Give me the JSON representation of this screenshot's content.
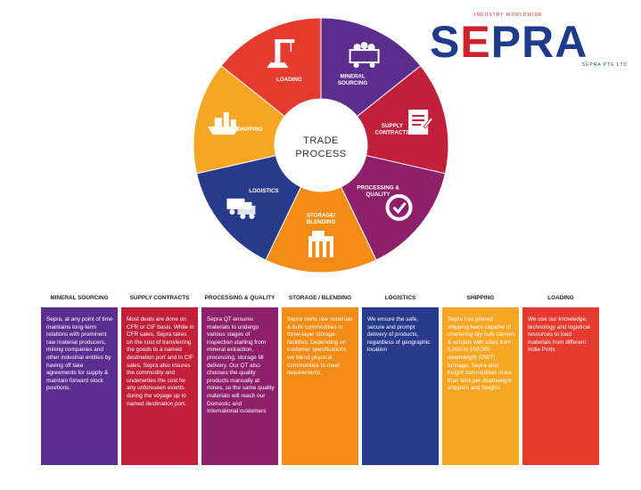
{
  "logo": {
    "tagline": "INDUSTRY WORLDWIDE",
    "word": "SEPRA",
    "sub": "SEPRA PTE LTD",
    "colors": {
      "blue": "#1f3c8a",
      "red": "#d0212a"
    }
  },
  "wheel": {
    "center_line1": "TRADE",
    "center_line2": "PROCESS",
    "segments": [
      {
        "name": "mineral-sourcing",
        "lines": [
          "MINERAL",
          "SOURCING"
        ],
        "icon": "mining-cart-icon",
        "color": "#5b2d8e"
      },
      {
        "name": "supply-contracts",
        "lines": [
          "SUPPLY",
          "CONTRACTS"
        ],
        "icon": "contract-document-icon",
        "color": "#c21f3a"
      },
      {
        "name": "processing-quality",
        "lines": [
          "PROCESSING &",
          "QUALITY"
        ],
        "icon": "quality-check-icon",
        "color": "#8e1f6b"
      },
      {
        "name": "storage-blending",
        "lines": [
          "STORAGE/",
          "BLENDING"
        ],
        "icon": "storage-silo-icon",
        "color": "#f28c16"
      },
      {
        "name": "logistics",
        "lines": [
          "LOGISTICS"
        ],
        "icon": "trucks-icon",
        "color": "#283a8c"
      },
      {
        "name": "shipping",
        "lines": [
          "SHIPPING"
        ],
        "icon": "ship-icon",
        "color": "#f6a623"
      },
      {
        "name": "loading",
        "lines": [
          "LOADING"
        ],
        "icon": "crane-icon",
        "color": "#e63a2e"
      }
    ]
  },
  "columns": [
    {
      "title": "MINERAL SOURCING",
      "color": "#5b2d8e",
      "text": "Sepra, at any point of time maintains long-term relations with prominent raw material producers, mining companies and other industrial entities by having off take agreements for supply & maintain forward stock positions."
    },
    {
      "title": "SUPPLY CONTRACTS",
      "color": "#c21f3a",
      "text": "Most deals are done on CFR or CIF basis. While in CFR sales, Sepra takes on the cost of transferring the goods to a named destination port and in CIF sales, Sepra also insures the commodity and underwrites the cost for any unforeseen events during the voyage up to named destination port."
    },
    {
      "title": "PROCESSING & QUALITY",
      "color": "#8e1f6b",
      "text": "Sepra QT ensures materials to undergo various stages of inspection starting from mineral extraction, processing, storage till delivery. Our QT also chooses the quality products manually at mines, so the same quality materials will reach our Domestic and International customers"
    },
    {
      "title": "STORAGE / BLENDING",
      "color": "#f28c16",
      "text": "Sepra owns raw materials & bulk commodities in three-layer storage facilities. Depending on customer specifications we blend physical commodities to meet requirements."
    },
    {
      "title": "LOGISTICS",
      "color": "#283a8c",
      "text": "We ensure the safe, secure and prompt delivery of products, regardless of geographic location"
    },
    {
      "title": "SHIPPING",
      "color": "#f6a623",
      "text": "Sepra has geared shipping team capable of chartering dry bulk carriers & vessels with sizes from 5,000 to 100,000 deadweight (DWT) tonnage. Sepra also freight commodities more than tens per deadweight shippers and freights"
    },
    {
      "title": "LOADING",
      "color": "#e63a2e",
      "text": "We use our knowledge, technology and logistical resources to load materials from different India Ports"
    }
  ]
}
